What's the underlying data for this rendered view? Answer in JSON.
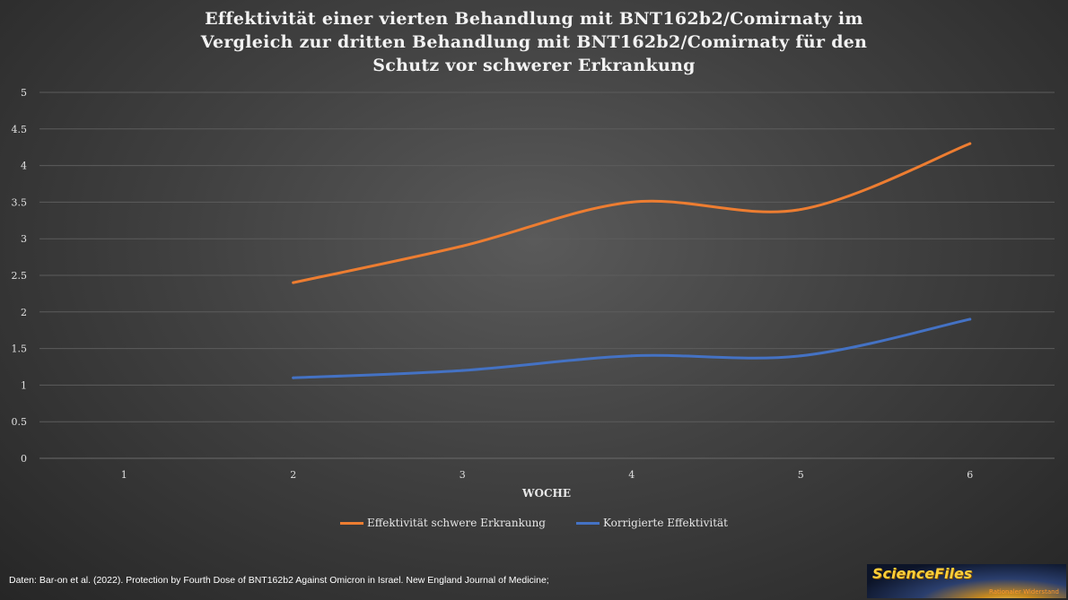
{
  "chart_data": {
    "type": "line",
    "title_lines": [
      "Effektivität  einer vierten Behandlung mit BNT162b2/Comirnaty  im",
      "Vergleich zur dritten Behandlung mit BNT162b2/Comirnaty für den",
      "Schutz vor schwerer Erkrankung"
    ],
    "xlabel": "WOCHE",
    "ylabel": "",
    "categories": [
      "1",
      "2",
      "3",
      "4",
      "5",
      "6"
    ],
    "ylim": [
      0,
      5
    ],
    "yticks": [
      "0",
      "0.5",
      "1",
      "1.5",
      "2",
      "2.5",
      "3",
      "3.5",
      "4",
      "4.5",
      "5"
    ],
    "grid": true,
    "legend_position": "bottom",
    "series": [
      {
        "name": "Effektivität schwere Erkrankung",
        "color": "#ed7d31",
        "values": [
          null,
          2.4,
          2.9,
          3.5,
          3.4,
          4.3
        ]
      },
      {
        "name": "Korrigierte Effektivität",
        "color": "#4472c4",
        "values": [
          null,
          1.1,
          1.2,
          1.4,
          1.4,
          1.9
        ]
      }
    ]
  },
  "source": "Daten: Bar-on et al. (2022).  Protection by Fourth Dose of BNT162b2  Against Omicron in Israel. New England Journal of Medicine;",
  "logo": {
    "name": "ScienceFiles",
    "tagline": "Rationaler Widerstand"
  }
}
